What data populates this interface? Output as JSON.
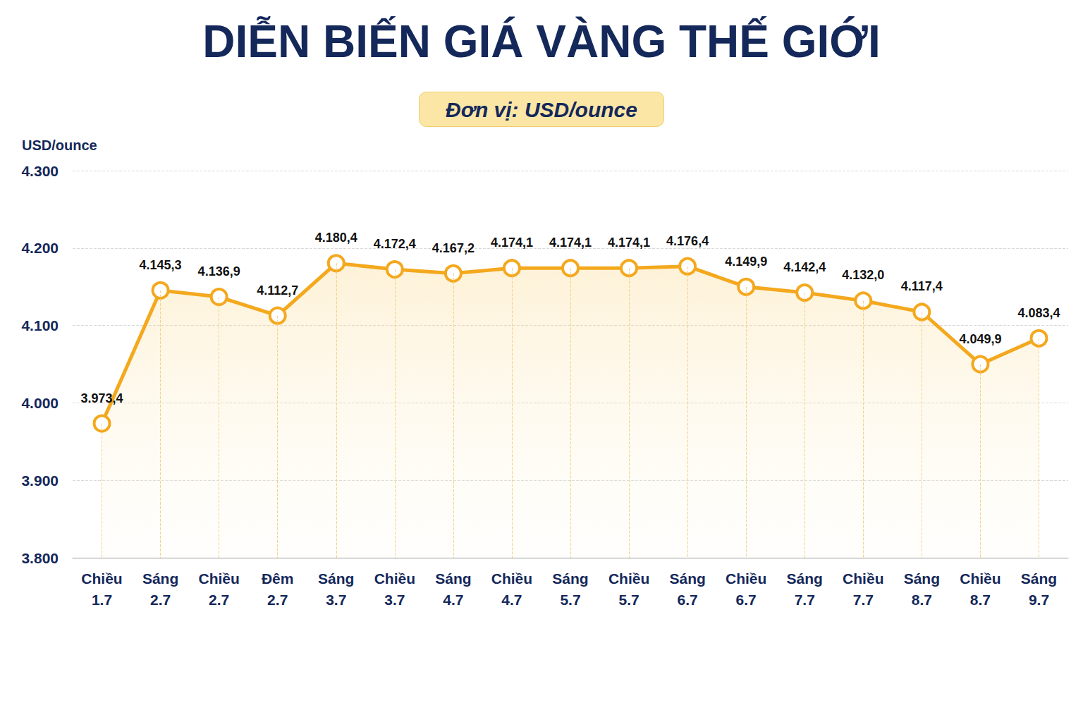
{
  "chart_data": {
    "type": "line",
    "title": "DIỄN BIẾN GIÁ VÀNG THẾ GIỚI",
    "subtitle": "Đơn vị: USD/ounce",
    "ylabel": "USD/ounce",
    "categories": [
      "Chiều 1.7",
      "Sáng 2.7",
      "Chiều 2.7",
      "Đêm 2.7",
      "Sáng 3.7",
      "Chiều 3.7",
      "Sáng 4.7",
      "Chiều 4.7",
      "Sáng 5.7",
      "Chiều 5.7",
      "Sáng 6.7",
      "Chiều 6.7",
      "Sáng 7.7",
      "Chiều 7.7",
      "Sáng 8.7",
      "Chiều 8.7",
      "Sáng 9.7"
    ],
    "values": [
      3973.4,
      4145.3,
      4136.9,
      4112.7,
      4180.4,
      4172.4,
      4167.2,
      4174.1,
      4174.1,
      4174.1,
      4176.4,
      4149.9,
      4142.4,
      4132.0,
      4117.4,
      4049.9,
      4083.4
    ],
    "value_labels": [
      "3.973,4",
      "4.145,3",
      "4.136,9",
      "4.112,7",
      "4.180,4",
      "4.172,4",
      "4.167,2",
      "4.174,1",
      "4.174,1",
      "4.174,1",
      "4.176,4",
      "4.149,9",
      "4.142,4",
      "4.132,0",
      "4.117,4",
      "4.049,9",
      "4.083,4"
    ],
    "color": "#f4a81d",
    "marker": "circle",
    "data_labels": true,
    "ylim": [
      3800,
      4300
    ],
    "yticks": [
      {
        "value": 3800,
        "label": "3.800"
      },
      {
        "value": 3900,
        "label": "3.900"
      },
      {
        "value": 4000,
        "label": "4.000"
      },
      {
        "value": 4100,
        "label": "4.100"
      },
      {
        "value": 4200,
        "label": "4.200"
      },
      {
        "value": 4300,
        "label": "4.300"
      }
    ],
    "grid": true
  }
}
